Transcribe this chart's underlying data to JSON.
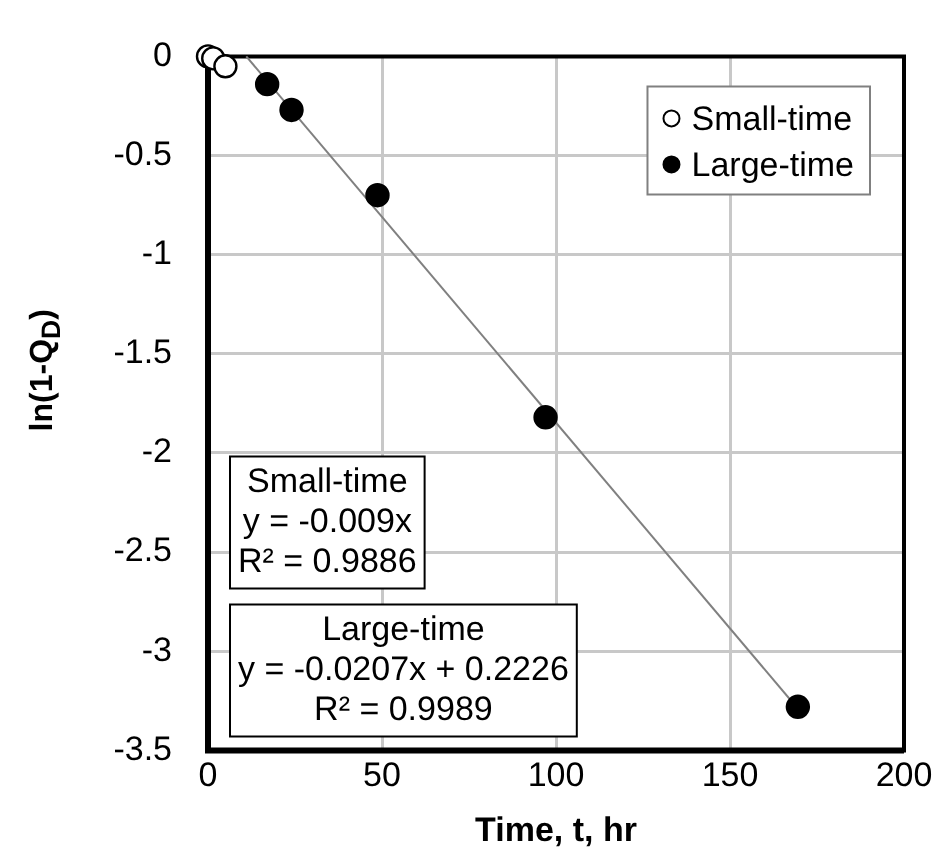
{
  "chart_data": {
    "type": "scatter",
    "xlabel": "Time, t, hr",
    "ylabel": "ln(1-Q$_{D}$)",
    "xlim": [
      0,
      200
    ],
    "xticks": [
      0,
      50,
      100,
      150,
      200
    ],
    "ylim": [
      -3.5,
      0
    ],
    "yticks": [
      0,
      -0.5,
      -1,
      -1.5,
      -2,
      -2.5,
      -3,
      -3.5
    ],
    "grid": true,
    "legend": "top right",
    "marker": "circle",
    "series": [
      {
        "name": "Small-time",
        "color": "#ffffff",
        "x": [
          0,
          1.5,
          5
        ],
        "values": [
          0,
          -0.01,
          -0.05
        ]
      },
      {
        "name": "Large-time",
        "color": "#000000",
        "x": [
          17,
          24,
          48.7,
          97,
          169.5
        ],
        "values": [
          -0.14,
          -0.27,
          -0.7,
          -1.82,
          -3.28
        ]
      },
      {
        "type": "line",
        "color": "#808080",
        "marker": "none",
        "x": [
          11,
          170
        ],
        "values": [
          0,
          -3.3
        ]
      }
    ],
    "annotations": [
      "Small-time\ny = -0.009x\nR² = 0.9886",
      "Large-time\ny = -0.0207x + 0.2226\nR² = 0.9989"
    ]
  }
}
